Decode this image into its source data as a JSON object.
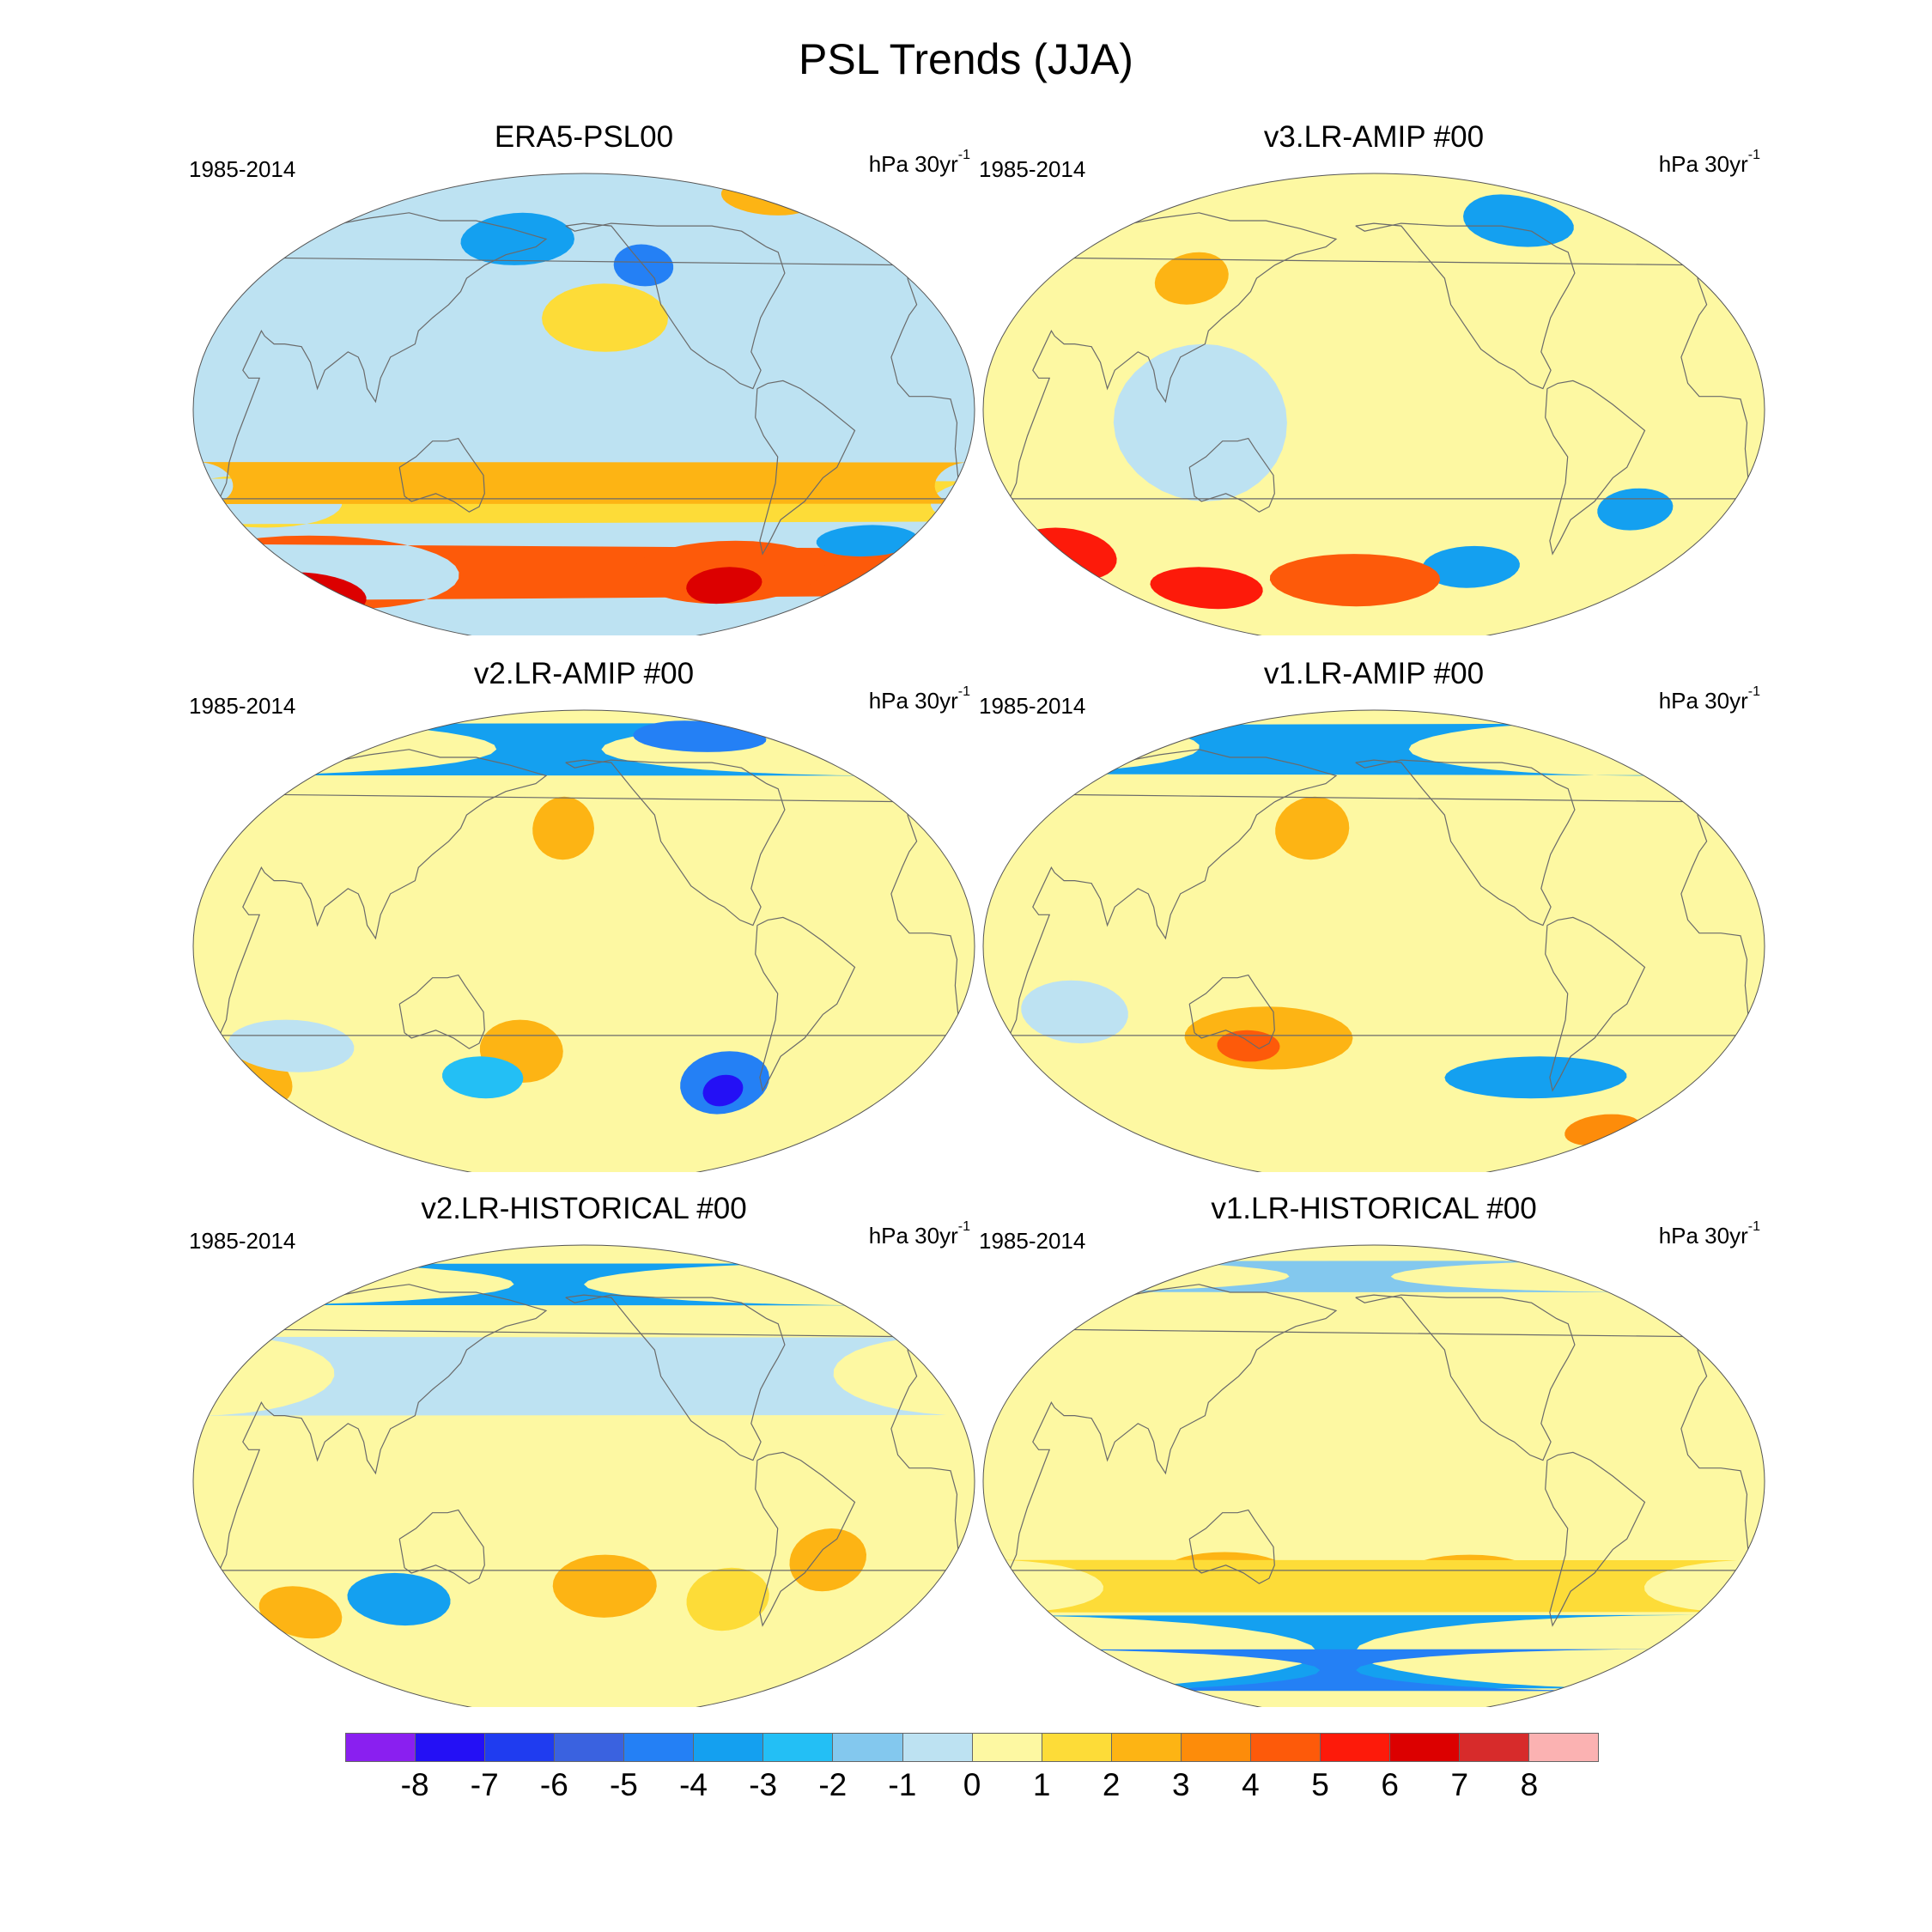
{
  "figure": {
    "title": "PSL Trends (JJA)"
  },
  "panels": [
    {
      "title": "ERA5-PSL00",
      "period": "1985-2014",
      "units": "hPa 30yr",
      "units_exp": "-1"
    },
    {
      "title": "v3.LR-AMIP  #00",
      "period": "1985-2014",
      "units": "hPa 30yr",
      "units_exp": "-1"
    },
    {
      "title": "v2.LR-AMIP  #00",
      "period": "1985-2014",
      "units": "hPa 30yr",
      "units_exp": "-1"
    },
    {
      "title": "v1.LR-AMIP  #00",
      "period": "1985-2014",
      "units": "hPa 30yr",
      "units_exp": "-1"
    },
    {
      "title": "v2.LR-HISTORICAL  #00",
      "period": "1985-2014",
      "units": "hPa 30yr",
      "units_exp": "-1"
    },
    {
      "title": "v1.LR-HISTORICAL  #00",
      "period": "1985-2014",
      "units": "hPa 30yr",
      "units_exp": "-1"
    }
  ],
  "colorbar": {
    "levels": [
      "-8",
      "-7",
      "-6",
      "-5",
      "-4",
      "-3",
      "-2",
      "-1",
      "0",
      "1",
      "2",
      "3",
      "4",
      "5",
      "6",
      "7",
      "8"
    ],
    "colors": [
      "#8a1ff0",
      "#2410f5",
      "#1f3cf0",
      "#3a62e0",
      "#2480f5",
      "#14a0f0",
      "#23bff5",
      "#83c8ee",
      "#bde2f2",
      "#fdf8a2",
      "#fddc38",
      "#fdb414",
      "#fd8c0a",
      "#fd5a0a",
      "#fd1a0a",
      "#dc0000",
      "#d72b2b",
      "#fbb2b2"
    ]
  },
  "map_fields": [
    {
      "base": 8,
      "blobs": [
        {
          "lon": -150,
          "lat": 35,
          "rx": 30,
          "ry": 13,
          "level": 10
        },
        {
          "lon": 45,
          "lat": -35,
          "rx": 40,
          "ry": 10,
          "level": 10
        },
        {
          "lon": 20,
          "lat": -28,
          "rx": 15,
          "ry": 8,
          "level": 11
        },
        {
          "lon": 65,
          "lat": -62,
          "rx": 70,
          "ry": 14,
          "level": 13
        },
        {
          "lon": 50,
          "lat": -70,
          "rx": 30,
          "ry": 8,
          "level": 15
        },
        {
          "lon": -85,
          "lat": -62,
          "rx": 50,
          "ry": 12,
          "level": 13
        },
        {
          "lon": -85,
          "lat": -67,
          "rx": 20,
          "ry": 7,
          "level": 15
        },
        {
          "lon": -20,
          "lat": -50,
          "rx": 25,
          "ry": 6,
          "level": 5
        },
        {
          "lon": 165,
          "lat": 65,
          "rx": 30,
          "ry": 10,
          "level": 5
        },
        {
          "lon": -130,
          "lat": 55,
          "rx": 15,
          "ry": 8,
          "level": 4
        },
        {
          "lon": -50,
          "lat": 80,
          "rx": 25,
          "ry": 6,
          "level": 11
        }
      ]
    },
    {
      "base": 9,
      "blobs": [
        {
          "lon": 165,
          "lat": 20,
          "rx": 55,
          "ry": 22,
          "level": 9
        },
        {
          "lon": -35,
          "lat": -38,
          "rx": 18,
          "ry": 8,
          "level": 5
        },
        {
          "lon": 45,
          "lat": -55,
          "rx": 25,
          "ry": 10,
          "level": 14
        },
        {
          "lon": -110,
          "lat": -60,
          "rx": 25,
          "ry": 8,
          "level": 5
        },
        {
          "lon": -170,
          "lat": -65,
          "rx": 45,
          "ry": 10,
          "level": 13
        },
        {
          "lon": 110,
          "lat": -68,
          "rx": 30,
          "ry": 8,
          "level": 14
        },
        {
          "lon": -80,
          "lat": 72,
          "rx": 30,
          "ry": 10,
          "level": 5
        },
        {
          "lon": 110,
          "lat": 50,
          "rx": 18,
          "ry": 10,
          "level": 11
        },
        {
          "lon": 120,
          "lat": -5,
          "rx": 40,
          "ry": 30,
          "level": 8
        }
      ]
    },
    {
      "base": 9,
      "blobs": [
        {
          "lon": 0,
          "lat": 75,
          "rx": 150,
          "ry": 10,
          "level": 5
        },
        {
          "lon": -90,
          "lat": 80,
          "rx": 40,
          "ry": 6,
          "level": 4
        },
        {
          "lon": -170,
          "lat": 45,
          "rx": 15,
          "ry": 12,
          "level": 11
        },
        {
          "lon": 170,
          "lat": -40,
          "rx": 20,
          "ry": 12,
          "level": 11
        },
        {
          "lon": 40,
          "lat": -50,
          "rx": 15,
          "ry": 10,
          "level": 11
        },
        {
          "lon": -90,
          "lat": -52,
          "rx": 22,
          "ry": 12,
          "level": 4
        },
        {
          "lon": -90,
          "lat": -55,
          "rx": 10,
          "ry": 6,
          "level": 1
        },
        {
          "lon": 150,
          "lat": -50,
          "rx": 20,
          "ry": 8,
          "level": 6
        },
        {
          "lon": 60,
          "lat": -38,
          "rx": 30,
          "ry": 10,
          "level": 8
        }
      ]
    },
    {
      "base": 9,
      "blobs": [
        {
          "lon": -20,
          "lat": 75,
          "rx": 120,
          "ry": 10,
          "level": 5
        },
        {
          "lon": 170,
          "lat": 45,
          "rx": 18,
          "ry": 12,
          "level": 11
        },
        {
          "lon": 150,
          "lat": -35,
          "rx": 40,
          "ry": 12,
          "level": 11
        },
        {
          "lon": 140,
          "lat": -38,
          "rx": 15,
          "ry": 6,
          "level": 13
        },
        {
          "lon": -80,
          "lat": -50,
          "rx": 45,
          "ry": 8,
          "level": 5
        },
        {
          "lon": -35,
          "lat": -70,
          "rx": 20,
          "ry": 6,
          "level": 12
        },
        {
          "lon": 60,
          "lat": -25,
          "rx": 25,
          "ry": 12,
          "level": 8
        }
      ]
    },
    {
      "base": 9,
      "blobs": [
        {
          "lon": 0,
          "lat": 75,
          "rx": 160,
          "ry": 8,
          "level": 5
        },
        {
          "lon": 110,
          "lat": -45,
          "rx": 25,
          "ry": 10,
          "level": 5
        },
        {
          "lon": 60,
          "lat": -50,
          "rx": 20,
          "ry": 10,
          "level": 11
        },
        {
          "lon": -150,
          "lat": -40,
          "rx": 25,
          "ry": 12,
          "level": 11
        },
        {
          "lon": -90,
          "lat": -45,
          "rx": 20,
          "ry": 12,
          "level": 10
        },
        {
          "lon": -45,
          "lat": -30,
          "rx": 18,
          "ry": 12,
          "level": 11
        },
        {
          "lon": 20,
          "lat": 40,
          "rx": 60,
          "ry": 15,
          "level": 8
        }
      ]
    },
    {
      "base": 9,
      "blobs": [
        {
          "lon": 0,
          "lat": -65,
          "rx": 170,
          "ry": 14,
          "level": 5
        },
        {
          "lon": 0,
          "lat": -72,
          "rx": 170,
          "ry": 8,
          "level": 4
        },
        {
          "lon": -115,
          "lat": -38,
          "rx": 35,
          "ry": 10,
          "level": 11
        },
        {
          "lon": 130,
          "lat": -35,
          "rx": 30,
          "ry": 8,
          "level": 11
        },
        {
          "lon": 20,
          "lat": -40,
          "rx": 50,
          "ry": 10,
          "level": 10
        },
        {
          "lon": 0,
          "lat": 78,
          "rx": 150,
          "ry": 6,
          "level": 7
        }
      ]
    }
  ]
}
